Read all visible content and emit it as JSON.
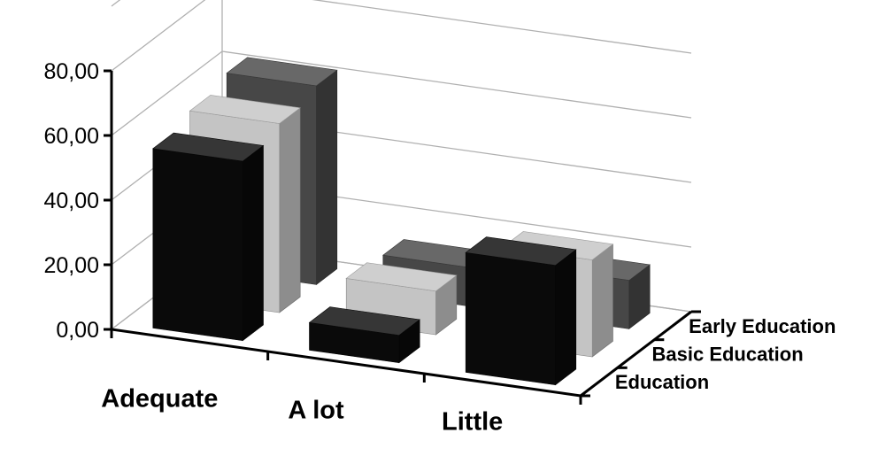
{
  "chart_data": {
    "type": "bar",
    "subtype": "3d-column",
    "categories": [
      "Adequate",
      "A lot",
      "Little"
    ],
    "series": [
      {
        "name": "Education",
        "values": [
          55.5,
          8.5,
          37.0
        ],
        "color": "#0a0a0a"
      },
      {
        "name": "Basic Education",
        "values": [
          58.5,
          13.5,
          30.0
        ],
        "color": "#c4c4c4"
      },
      {
        "name": "Early Education",
        "values": [
          61.5,
          12.0,
          15.0
        ],
        "color": "#474747"
      }
    ],
    "y_ticks": [
      "0,00",
      "20,00",
      "40,00",
      "60,00",
      "80,00"
    ],
    "ylim": [
      0,
      80
    ],
    "grid": true,
    "legend": "none",
    "title": "",
    "xlabel": "",
    "ylabel": ""
  }
}
